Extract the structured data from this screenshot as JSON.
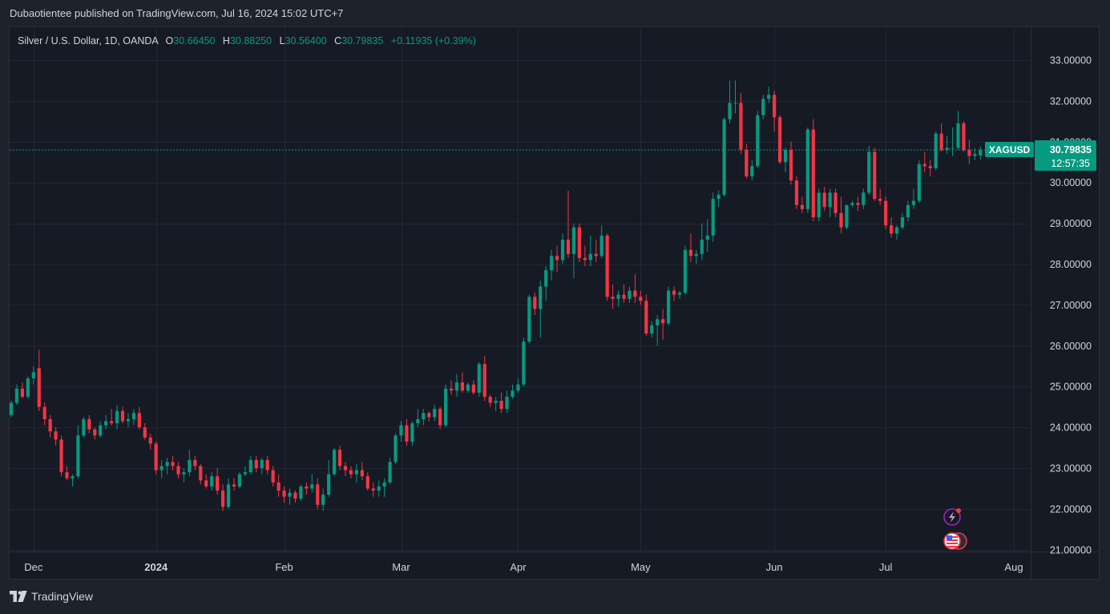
{
  "header": {
    "publisher": "Dubaotientee published on TradingView.com, Jul 16, 2024 15:02 UTC+7"
  },
  "legend": {
    "symbol": "Silver / U.S. Dollar, 1D, OANDA",
    "o_label": "O",
    "o_value": "30.66450",
    "h_label": "H",
    "h_value": "30.88250",
    "l_label": "L",
    "l_value": "30.56400",
    "c_label": "C",
    "c_value": "30.79835",
    "change": "+0.11935 (+0.39%)"
  },
  "price_tag": {
    "ticker": "XAGUSD",
    "price": "30.79835",
    "countdown": "12:57:35"
  },
  "footer": {
    "brand": "TradingView"
  },
  "colors": {
    "up": "#089981",
    "down": "#f23645",
    "background": "#161a25",
    "grid": "#232733",
    "text": "#d1d4dc"
  },
  "icons": [
    "lightning-event-icon",
    "us-flag-event-icon"
  ],
  "chart_data": {
    "type": "candlestick",
    "title": "Silver / U.S. Dollar, 1D, OANDA",
    "ylim": [
      20.8,
      33.8
    ],
    "ticks_y": [
      "33.00000",
      "32.00000",
      "31.00000",
      "30.00000",
      "29.00000",
      "28.00000",
      "27.00000",
      "26.00000",
      "25.00000",
      "24.00000",
      "23.00000",
      "22.00000",
      "21.00000"
    ],
    "ticks_x": [
      {
        "label": "Dec",
        "bar": 4,
        "bold": false
      },
      {
        "label": "2024",
        "bar": 26,
        "bold": true
      },
      {
        "label": "Feb",
        "bar": 49,
        "bold": false
      },
      {
        "label": "Mar",
        "bar": 70,
        "bold": false
      },
      {
        "label": "Apr",
        "bar": 91,
        "bold": false
      },
      {
        "label": "May",
        "bar": 113,
        "bold": false
      },
      {
        "label": "Jun",
        "bar": 137,
        "bold": false
      },
      {
        "label": "Jul",
        "bar": 157,
        "bold": false
      },
      {
        "label": "Aug",
        "bar": 180,
        "bold": false
      }
    ],
    "last_price": 30.79835,
    "ohlc": [
      [
        24.3,
        24.65,
        24.25,
        24.6
      ],
      [
        24.6,
        25.05,
        24.55,
        24.95
      ],
      [
        24.95,
        25.1,
        24.7,
        24.75
      ],
      [
        24.75,
        25.25,
        24.7,
        25.2
      ],
      [
        25.2,
        25.5,
        25.05,
        25.35
      ],
      [
        25.45,
        25.9,
        24.4,
        24.5
      ],
      [
        24.5,
        24.6,
        24.05,
        24.2
      ],
      [
        24.2,
        24.3,
        23.75,
        23.9
      ],
      [
        23.9,
        24.0,
        23.55,
        23.7
      ],
      [
        23.7,
        23.8,
        22.8,
        22.9
      ],
      [
        22.9,
        23.05,
        22.7,
        22.75
      ],
      [
        22.75,
        22.85,
        22.55,
        22.8
      ],
      [
        22.8,
        24.05,
        22.75,
        23.8
      ],
      [
        23.8,
        24.25,
        23.75,
        24.2
      ],
      [
        24.2,
        24.3,
        23.85,
        23.95
      ],
      [
        23.95,
        24.0,
        23.7,
        23.8
      ],
      [
        23.8,
        24.15,
        23.75,
        24.05
      ],
      [
        24.05,
        24.3,
        23.95,
        24.15
      ],
      [
        24.15,
        24.45,
        24.05,
        24.1
      ],
      [
        24.1,
        24.55,
        23.95,
        24.4
      ],
      [
        24.4,
        24.5,
        24.1,
        24.15
      ],
      [
        24.15,
        24.35,
        24.0,
        24.2
      ],
      [
        24.2,
        24.45,
        24.05,
        24.35
      ],
      [
        24.35,
        24.5,
        23.95,
        24.0
      ],
      [
        24.0,
        24.1,
        23.7,
        23.75
      ],
      [
        23.75,
        23.85,
        23.45,
        23.6
      ],
      [
        23.6,
        23.65,
        22.85,
        22.95
      ],
      [
        22.95,
        23.2,
        22.75,
        23.05
      ],
      [
        23.05,
        23.25,
        22.85,
        23.15
      ],
      [
        23.15,
        23.3,
        22.95,
        23.05
      ],
      [
        23.05,
        23.15,
        22.75,
        22.85
      ],
      [
        22.85,
        23.0,
        22.65,
        22.9
      ],
      [
        22.9,
        23.45,
        22.8,
        23.2
      ],
      [
        23.2,
        23.3,
        22.95,
        23.05
      ],
      [
        23.05,
        23.1,
        22.6,
        22.7
      ],
      [
        22.7,
        22.85,
        22.5,
        22.55
      ],
      [
        22.55,
        22.9,
        22.45,
        22.8
      ],
      [
        22.8,
        23.0,
        22.35,
        22.45
      ],
      [
        22.45,
        22.6,
        21.95,
        22.05
      ],
      [
        22.05,
        22.75,
        22.0,
        22.6
      ],
      [
        22.6,
        22.75,
        22.45,
        22.55
      ],
      [
        22.55,
        22.9,
        22.5,
        22.85
      ],
      [
        22.85,
        23.05,
        22.8,
        22.9
      ],
      [
        22.9,
        23.3,
        22.85,
        23.2
      ],
      [
        23.2,
        23.3,
        22.9,
        23.0
      ],
      [
        23.0,
        23.25,
        22.85,
        23.2
      ],
      [
        23.2,
        23.3,
        22.85,
        22.95
      ],
      [
        22.95,
        23.05,
        22.55,
        22.65
      ],
      [
        22.65,
        22.85,
        22.3,
        22.45
      ],
      [
        22.45,
        22.55,
        22.15,
        22.3
      ],
      [
        22.3,
        22.5,
        22.1,
        22.4
      ],
      [
        22.4,
        22.45,
        22.15,
        22.25
      ],
      [
        22.25,
        22.6,
        22.2,
        22.55
      ],
      [
        22.55,
        22.65,
        22.35,
        22.5
      ],
      [
        22.5,
        22.85,
        22.4,
        22.6
      ],
      [
        22.6,
        22.75,
        22.0,
        22.1
      ],
      [
        22.1,
        22.5,
        21.95,
        22.35
      ],
      [
        22.35,
        23.2,
        22.3,
        22.85
      ],
      [
        22.85,
        23.5,
        22.8,
        23.45
      ],
      [
        23.45,
        23.55,
        22.95,
        23.05
      ],
      [
        23.05,
        23.15,
        22.8,
        22.95
      ],
      [
        22.95,
        23.05,
        22.75,
        22.85
      ],
      [
        22.85,
        23.1,
        22.65,
        22.95
      ],
      [
        22.95,
        23.15,
        22.7,
        22.8
      ],
      [
        22.8,
        22.9,
        22.45,
        22.5
      ],
      [
        22.5,
        22.65,
        22.3,
        22.45
      ],
      [
        22.45,
        22.7,
        22.3,
        22.55
      ],
      [
        22.55,
        22.75,
        22.3,
        22.65
      ],
      [
        22.65,
        23.25,
        22.6,
        23.15
      ],
      [
        23.15,
        23.85,
        23.1,
        23.8
      ],
      [
        23.8,
        24.15,
        23.65,
        24.05
      ],
      [
        24.05,
        24.2,
        23.55,
        23.65
      ],
      [
        23.65,
        24.15,
        23.55,
        24.1
      ],
      [
        24.1,
        24.45,
        24.0,
        24.2
      ],
      [
        24.2,
        24.45,
        24.05,
        24.35
      ],
      [
        24.35,
        24.4,
        24.15,
        24.25
      ],
      [
        24.25,
        24.55,
        24.15,
        24.45
      ],
      [
        24.45,
        24.5,
        23.95,
        24.05
      ],
      [
        24.05,
        25.05,
        24.0,
        24.95
      ],
      [
        24.95,
        25.15,
        24.8,
        24.9
      ],
      [
        24.9,
        25.3,
        24.75,
        25.1
      ],
      [
        25.1,
        25.35,
        24.85,
        24.9
      ],
      [
        24.9,
        25.1,
        24.85,
        25.05
      ],
      [
        25.05,
        25.15,
        24.8,
        24.85
      ],
      [
        24.85,
        25.6,
        24.75,
        25.55
      ],
      [
        25.55,
        25.75,
        24.65,
        24.75
      ],
      [
        24.75,
        24.8,
        24.5,
        24.6
      ],
      [
        24.6,
        24.75,
        24.4,
        24.65
      ],
      [
        24.65,
        24.85,
        24.35,
        24.45
      ],
      [
        24.45,
        24.9,
        24.35,
        24.75
      ],
      [
        24.75,
        25.05,
        24.7,
        24.9
      ],
      [
        24.9,
        25.2,
        24.85,
        25.05
      ],
      [
        25.05,
        26.2,
        25.0,
        26.1
      ],
      [
        26.1,
        27.25,
        26.05,
        27.2
      ],
      [
        27.2,
        27.3,
        26.75,
        26.9
      ],
      [
        26.9,
        27.6,
        26.2,
        27.45
      ],
      [
        27.45,
        27.95,
        27.1,
        27.85
      ],
      [
        27.85,
        28.35,
        27.6,
        28.2
      ],
      [
        28.2,
        28.45,
        27.8,
        28.1
      ],
      [
        28.1,
        28.75,
        28.0,
        28.6
      ],
      [
        28.6,
        29.8,
        28.15,
        28.25
      ],
      [
        28.25,
        29.0,
        27.65,
        28.9
      ],
      [
        28.9,
        29.0,
        28.05,
        28.15
      ],
      [
        28.15,
        28.45,
        27.95,
        28.1
      ],
      [
        28.1,
        28.7,
        27.95,
        28.25
      ],
      [
        28.25,
        28.6,
        28.05,
        28.2
      ],
      [
        28.2,
        28.95,
        28.15,
        28.7
      ],
      [
        28.7,
        28.75,
        27.1,
        27.2
      ],
      [
        27.2,
        27.5,
        26.9,
        27.15
      ],
      [
        27.15,
        27.35,
        26.95,
        27.25
      ],
      [
        27.25,
        27.5,
        27.05,
        27.15
      ],
      [
        27.15,
        27.45,
        27.05,
        27.35
      ],
      [
        27.35,
        27.75,
        27.05,
        27.2
      ],
      [
        27.2,
        27.35,
        27.0,
        27.1
      ],
      [
        27.1,
        27.25,
        26.25,
        26.3
      ],
      [
        26.3,
        26.6,
        26.2,
        26.5
      ],
      [
        26.5,
        26.75,
        26.0,
        26.65
      ],
      [
        26.65,
        26.9,
        26.15,
        26.55
      ],
      [
        26.55,
        27.45,
        26.5,
        27.35
      ],
      [
        27.35,
        27.45,
        27.1,
        27.25
      ],
      [
        27.25,
        27.35,
        27.15,
        27.3
      ],
      [
        27.3,
        28.45,
        27.25,
        28.35
      ],
      [
        28.35,
        28.75,
        28.05,
        28.2
      ],
      [
        28.2,
        28.35,
        28.0,
        28.25
      ],
      [
        28.25,
        29.0,
        28.1,
        28.6
      ],
      [
        28.6,
        29.1,
        28.3,
        28.7
      ],
      [
        28.7,
        29.75,
        28.55,
        29.6
      ],
      [
        29.6,
        29.8,
        29.4,
        29.7
      ],
      [
        29.7,
        31.6,
        29.65,
        31.55
      ],
      [
        31.55,
        32.5,
        31.45,
        31.95
      ],
      [
        31.95,
        32.5,
        31.7,
        31.95
      ],
      [
        31.95,
        32.2,
        30.7,
        30.8
      ],
      [
        30.8,
        30.95,
        30.1,
        30.15
      ],
      [
        30.15,
        30.55,
        30.05,
        30.4
      ],
      [
        30.4,
        31.75,
        30.35,
        31.65
      ],
      [
        31.65,
        32.15,
        31.55,
        32.05
      ],
      [
        32.05,
        32.35,
        31.95,
        32.15
      ],
      [
        32.15,
        32.25,
        31.25,
        31.6
      ],
      [
        31.6,
        31.65,
        30.45,
        30.5
      ],
      [
        30.5,
        30.85,
        30.25,
        30.8
      ],
      [
        30.8,
        31.0,
        29.95,
        30.05
      ],
      [
        30.05,
        30.15,
        29.35,
        29.45
      ],
      [
        29.45,
        29.65,
        29.25,
        29.35
      ],
      [
        29.35,
        31.35,
        29.25,
        31.3
      ],
      [
        31.3,
        31.55,
        29.05,
        29.15
      ],
      [
        29.15,
        29.85,
        29.05,
        29.75
      ],
      [
        29.75,
        29.9,
        29.3,
        29.4
      ],
      [
        29.4,
        29.85,
        29.15,
        29.75
      ],
      [
        29.75,
        29.85,
        29.15,
        29.25
      ],
      [
        29.25,
        29.65,
        28.75,
        28.9
      ],
      [
        28.9,
        29.45,
        28.85,
        29.45
      ],
      [
        29.45,
        29.55,
        29.4,
        29.5
      ],
      [
        29.5,
        29.65,
        29.3,
        29.45
      ],
      [
        29.45,
        29.85,
        29.35,
        29.75
      ],
      [
        29.75,
        30.9,
        29.7,
        30.75
      ],
      [
        30.75,
        30.85,
        29.55,
        29.6
      ],
      [
        29.6,
        29.85,
        29.45,
        29.55
      ],
      [
        29.55,
        29.65,
        28.85,
        28.95
      ],
      [
        28.95,
        29.15,
        28.65,
        28.75
      ],
      [
        28.75,
        28.95,
        28.6,
        28.9
      ],
      [
        28.9,
        29.25,
        28.85,
        29.15
      ],
      [
        29.15,
        29.55,
        29.05,
        29.45
      ],
      [
        29.45,
        29.85,
        29.35,
        29.55
      ],
      [
        29.55,
        30.55,
        29.5,
        30.45
      ],
      [
        30.45,
        30.75,
        30.25,
        30.4
      ],
      [
        30.4,
        30.55,
        30.15,
        30.35
      ],
      [
        30.35,
        31.25,
        30.3,
        31.2
      ],
      [
        31.2,
        31.45,
        30.75,
        30.8
      ],
      [
        30.8,
        31.15,
        30.7,
        30.85
      ],
      [
        30.85,
        31.35,
        30.65,
        30.85
      ],
      [
        30.85,
        31.75,
        30.8,
        31.45
      ],
      [
        31.45,
        31.5,
        30.75,
        30.8
      ],
      [
        30.8,
        31.05,
        30.45,
        30.65
      ],
      [
        30.65,
        30.85,
        30.55,
        30.7
      ],
      [
        30.6645,
        30.8825,
        30.564,
        30.79835
      ]
    ]
  }
}
